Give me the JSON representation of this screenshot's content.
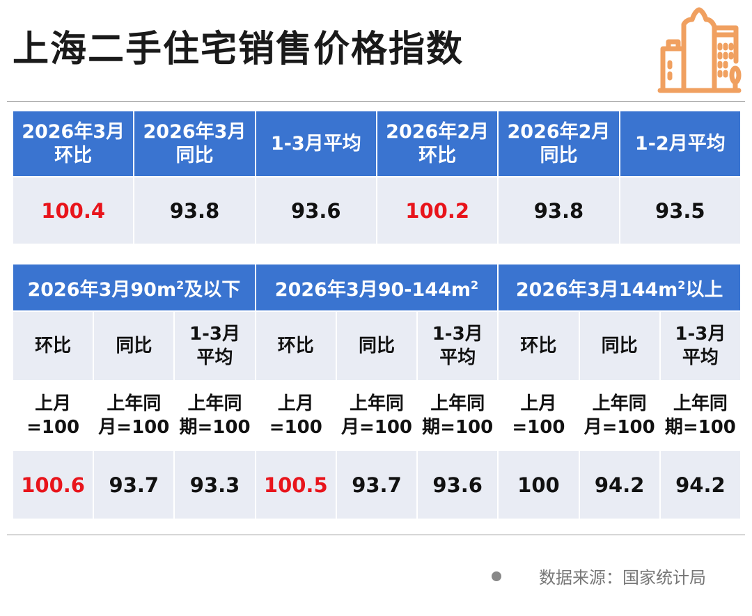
{
  "title": "上海二手住宅销售价格指数",
  "icon": "city-buildings-icon",
  "colors": {
    "header": "#3a74d0",
    "row_light": "#e9ecf4",
    "highlight": "#e8141b",
    "icon": "#f0a060"
  },
  "table1": {
    "headers": [
      "2026年3月\n环比",
      "2026年3月\n同比",
      "1-3月平均",
      "2026年2月\n环比",
      "2026年2月\n同比",
      "1-2月平均"
    ],
    "values": [
      "100.4",
      "93.8",
      "93.6",
      "100.2",
      "93.8",
      "93.5"
    ],
    "highlighted": [
      true,
      false,
      false,
      true,
      false,
      false
    ]
  },
  "table2": {
    "groups": [
      {
        "pre": "2026年3月90m",
        "sup": "2",
        "post": "及以下"
      },
      {
        "pre": "2026年3月90-144m",
        "sup": "2",
        "post": ""
      },
      {
        "pre": "2026年3月144m",
        "sup": "2",
        "post": "以上"
      }
    ],
    "subheaders": [
      "环比",
      "同比",
      "1-3月\n平均",
      "环比",
      "同比",
      "1-3月\n平均",
      "环比",
      "同比",
      "1-3月\n平均"
    ],
    "bases": [
      "上月\n=100",
      "上年同\n月=100",
      "上年同\n期=100",
      "上月\n=100",
      "上年同\n月=100",
      "上年同\n期=100",
      "上月\n=100",
      "上年同\n月=100",
      "上年同\n期=100"
    ],
    "values": [
      "100.6",
      "93.7",
      "93.3",
      "100.5",
      "93.7",
      "93.6",
      "100",
      "94.2",
      "94.2"
    ],
    "highlighted": [
      true,
      false,
      false,
      true,
      false,
      false,
      false,
      false,
      false
    ]
  },
  "source": "数据来源：国家统计局"
}
